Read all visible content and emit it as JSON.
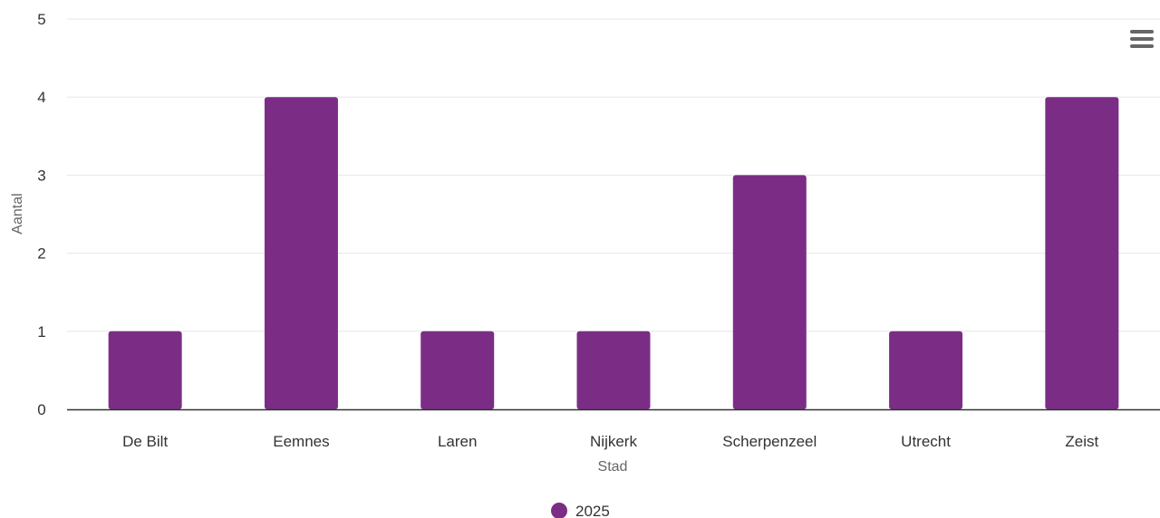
{
  "chart_data": {
    "type": "bar",
    "categories": [
      "De Bilt",
      "Eemnes",
      "Laren",
      "Nijkerk",
      "Scherpenzeel",
      "Utrecht",
      "Zeist"
    ],
    "series": [
      {
        "name": "2025",
        "values": [
          1,
          4,
          1,
          1,
          3,
          1,
          4
        ],
        "color": "#7b2d86"
      }
    ],
    "xlabel": "Stad",
    "ylabel": "Aantal",
    "ylim": [
      0,
      5
    ],
    "yticks": [
      "0",
      "1",
      "2",
      "3",
      "4",
      "5"
    ],
    "grid": true,
    "legend_position": "bottom-center"
  },
  "menu": {
    "icon": "hamburger-menu-icon"
  },
  "colors": {
    "bar": "#7b2d86",
    "grid": "#e6e6e6",
    "axis": "#333333"
  }
}
